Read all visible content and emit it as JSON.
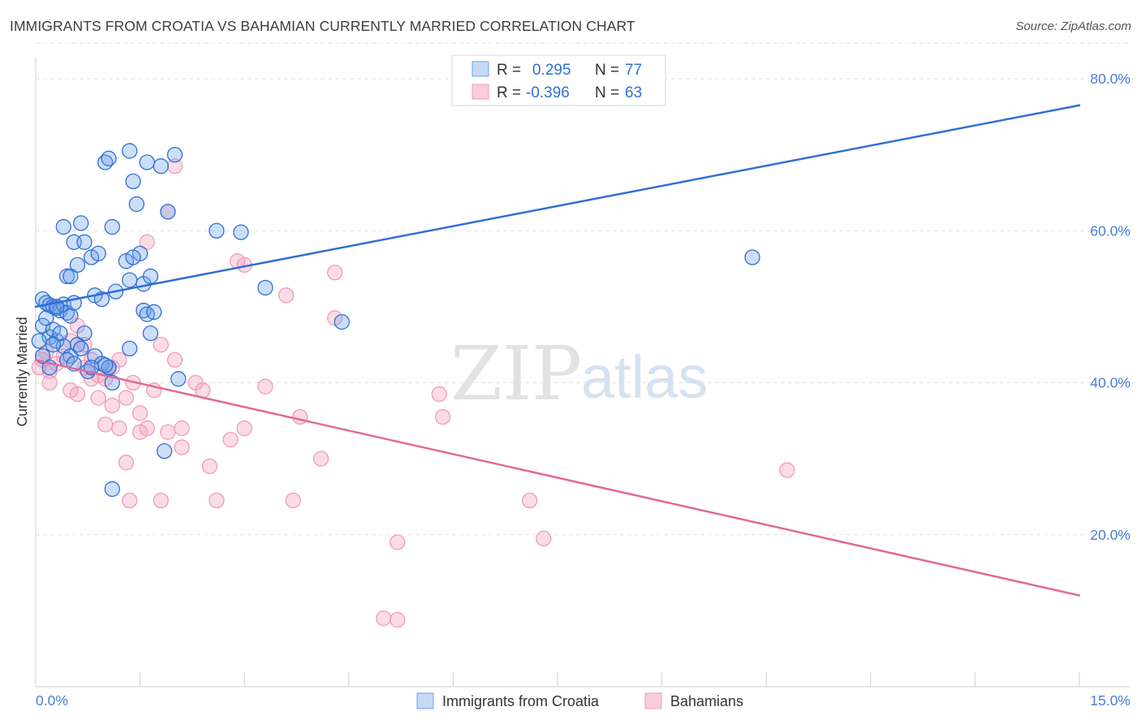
{
  "title": "IMMIGRANTS FROM CROATIA VS BAHAMIAN CURRENTLY MARRIED CORRELATION CHART",
  "source": "Source: ZipAtlas.com",
  "watermark": {
    "part1": "ZIP",
    "part2": "atlas"
  },
  "colors": {
    "blue": "#6ea0e8",
    "blue_line": "#2f6fd6",
    "pink": "#f29bb8",
    "pink_line": "#e0699a",
    "grid": "#e3e3e3"
  },
  "legend": {
    "r_label": "R =",
    "n_label": "N =",
    "rows": [
      {
        "r": "0.295",
        "n": "77"
      },
      {
        "r": "-0.396",
        "n": "63"
      }
    ]
  },
  "chart_data": {
    "type": "scatter",
    "xlabel": "",
    "ylabel": "Currently Married",
    "xlim": [
      0,
      15
    ],
    "ylim": [
      0,
      85
    ],
    "x_tick_labels": {
      "min": "0.0%",
      "max": "15.0%"
    },
    "y_ticks": [
      {
        "value": 20,
        "label": "20.0%"
      },
      {
        "value": 40,
        "label": "40.0%"
      },
      {
        "value": 60,
        "label": "60.0%"
      },
      {
        "value": 80,
        "label": "80.0%"
      }
    ],
    "grid": true,
    "legend_position": "top-center",
    "series": [
      {
        "name": "Immigrants from Croatia",
        "color": "#6ea0e8",
        "trend": {
          "x": [
            0,
            15
          ],
          "y": [
            50.0,
            76.5
          ]
        },
        "points": [
          [
            0.1,
            51.0
          ],
          [
            0.15,
            50.5
          ],
          [
            0.2,
            50.2
          ],
          [
            0.25,
            50.0
          ],
          [
            0.3,
            49.8
          ],
          [
            0.35,
            49.5
          ],
          [
            0.4,
            50.3
          ],
          [
            0.45,
            49.2
          ],
          [
            0.5,
            48.8
          ],
          [
            0.55,
            50.5
          ],
          [
            0.1,
            47.5
          ],
          [
            0.2,
            46.0
          ],
          [
            0.3,
            45.5
          ],
          [
            0.4,
            44.8
          ],
          [
            0.5,
            43.5
          ],
          [
            0.6,
            45.0
          ],
          [
            0.7,
            46.5
          ],
          [
            0.1,
            43.5
          ],
          [
            0.2,
            42.0
          ],
          [
            0.05,
            45.5
          ],
          [
            0.15,
            48.5
          ],
          [
            0.25,
            47.0
          ],
          [
            0.35,
            46.5
          ],
          [
            0.45,
            43.0
          ],
          [
            0.55,
            42.5
          ],
          [
            0.65,
            44.5
          ],
          [
            0.75,
            41.5
          ],
          [
            0.85,
            43.5
          ],
          [
            0.95,
            42.5
          ],
          [
            1.05,
            42.0
          ],
          [
            0.4,
            60.5
          ],
          [
            0.55,
            58.5
          ],
          [
            0.7,
            58.5
          ],
          [
            0.8,
            56.5
          ],
          [
            0.9,
            57.0
          ],
          [
            0.65,
            61.0
          ],
          [
            0.45,
            54.0
          ],
          [
            0.6,
            55.5
          ],
          [
            0.5,
            54.0
          ],
          [
            0.85,
            51.5
          ],
          [
            0.95,
            51.0
          ],
          [
            1.15,
            52.0
          ],
          [
            1.3,
            56.0
          ],
          [
            1.5,
            57.0
          ],
          [
            1.55,
            53.0
          ],
          [
            1.65,
            54.0
          ],
          [
            1.35,
            53.5
          ],
          [
            1.1,
            60.5
          ],
          [
            1.4,
            56.5
          ],
          [
            1.55,
            49.5
          ],
          [
            1.6,
            49.0
          ],
          [
            1.7,
            49.3
          ],
          [
            1.65,
            46.5
          ],
          [
            1.35,
            44.5
          ],
          [
            1.1,
            40.0
          ],
          [
            1.05,
            42.0
          ],
          [
            1.0,
            42.3
          ],
          [
            1.0,
            69.0
          ],
          [
            1.05,
            69.5
          ],
          [
            1.35,
            70.5
          ],
          [
            1.6,
            69.0
          ],
          [
            1.8,
            68.5
          ],
          [
            2.0,
            70.0
          ],
          [
            1.4,
            66.5
          ],
          [
            1.45,
            63.5
          ],
          [
            1.9,
            62.5
          ],
          [
            2.6,
            60.0
          ],
          [
            2.95,
            59.8
          ],
          [
            3.3,
            52.5
          ],
          [
            2.05,
            40.5
          ],
          [
            1.85,
            31.0
          ],
          [
            1.1,
            26.0
          ],
          [
            4.4,
            48.0
          ],
          [
            10.3,
            56.5
          ],
          [
            0.8,
            42.0
          ],
          [
            0.3,
            50.0
          ],
          [
            0.25,
            45.0
          ]
        ]
      },
      {
        "name": "Bahamians",
        "color": "#f29bb8",
        "trend": {
          "x": [
            0,
            15
          ],
          "y": [
            43.0,
            12.0
          ]
        },
        "points": [
          [
            0.05,
            42.0
          ],
          [
            0.1,
            43.0
          ],
          [
            0.15,
            44.0
          ],
          [
            0.2,
            41.5
          ],
          [
            0.3,
            42.5
          ],
          [
            0.4,
            43.5
          ],
          [
            0.5,
            45.5
          ],
          [
            0.6,
            47.5
          ],
          [
            0.7,
            42.0
          ],
          [
            0.8,
            43.0
          ],
          [
            0.9,
            41.0
          ],
          [
            1.0,
            40.5
          ],
          [
            1.1,
            42.0
          ],
          [
            1.2,
            43.0
          ],
          [
            0.5,
            39.0
          ],
          [
            0.9,
            38.0
          ],
          [
            1.1,
            37.0
          ],
          [
            1.3,
            38.0
          ],
          [
            1.5,
            36.0
          ],
          [
            1.0,
            34.5
          ],
          [
            1.2,
            34.0
          ],
          [
            1.5,
            33.5
          ],
          [
            1.6,
            34.0
          ],
          [
            1.9,
            33.5
          ],
          [
            2.1,
            34.0
          ],
          [
            1.3,
            29.5
          ],
          [
            1.35,
            24.5
          ],
          [
            1.8,
            24.5
          ],
          [
            2.1,
            31.5
          ],
          [
            1.8,
            45.0
          ],
          [
            2.0,
            43.0
          ],
          [
            2.3,
            40.0
          ],
          [
            2.4,
            39.0
          ],
          [
            1.6,
            58.5
          ],
          [
            1.9,
            62.5
          ],
          [
            2.0,
            68.5
          ],
          [
            2.9,
            56.0
          ],
          [
            3.0,
            55.5
          ],
          [
            3.6,
            51.5
          ],
          [
            4.3,
            54.5
          ],
          [
            4.3,
            48.5
          ],
          [
            2.5,
            29.0
          ],
          [
            2.6,
            24.5
          ],
          [
            2.8,
            32.5
          ],
          [
            3.0,
            34.0
          ],
          [
            3.3,
            39.5
          ],
          [
            3.8,
            35.5
          ],
          [
            3.7,
            24.5
          ],
          [
            4.1,
            30.0
          ],
          [
            5.8,
            38.5
          ],
          [
            5.85,
            35.5
          ],
          [
            5.2,
            19.0
          ],
          [
            5.0,
            9.0
          ],
          [
            5.2,
            8.8
          ],
          [
            7.1,
            24.5
          ],
          [
            7.3,
            19.5
          ],
          [
            10.8,
            28.5
          ],
          [
            0.7,
            45.0
          ],
          [
            0.8,
            40.5
          ],
          [
            1.4,
            40.0
          ],
          [
            0.6,
            38.5
          ],
          [
            0.2,
            40.0
          ],
          [
            1.7,
            39.0
          ]
        ]
      }
    ]
  }
}
